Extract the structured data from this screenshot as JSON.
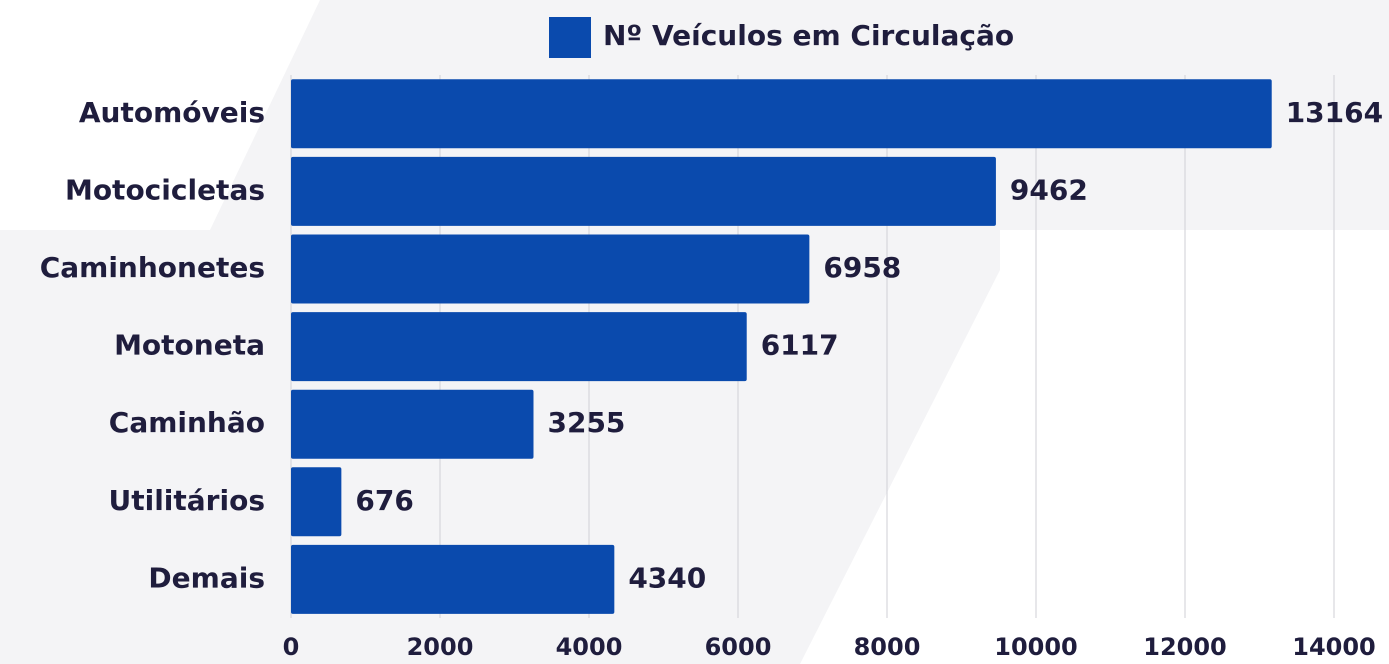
{
  "chart_data": {
    "type": "hbar",
    "categories": [
      "Automóveis",
      "Motocicletas",
      "Caminhonetes",
      "Motoneta",
      "Caminhão",
      "Utilitários",
      "Demais"
    ],
    "series": [
      {
        "name": "Nº Veículos em Circulação",
        "color": "#0a4aad",
        "values": [
          13164,
          9462,
          6958,
          6117,
          3255,
          676,
          4340
        ]
      }
    ],
    "xlim": [
      0,
      14000
    ],
    "xticks": [
      0,
      2000,
      4000,
      6000,
      8000,
      10000,
      12000,
      14000
    ],
    "grid": true,
    "legend": "top"
  }
}
